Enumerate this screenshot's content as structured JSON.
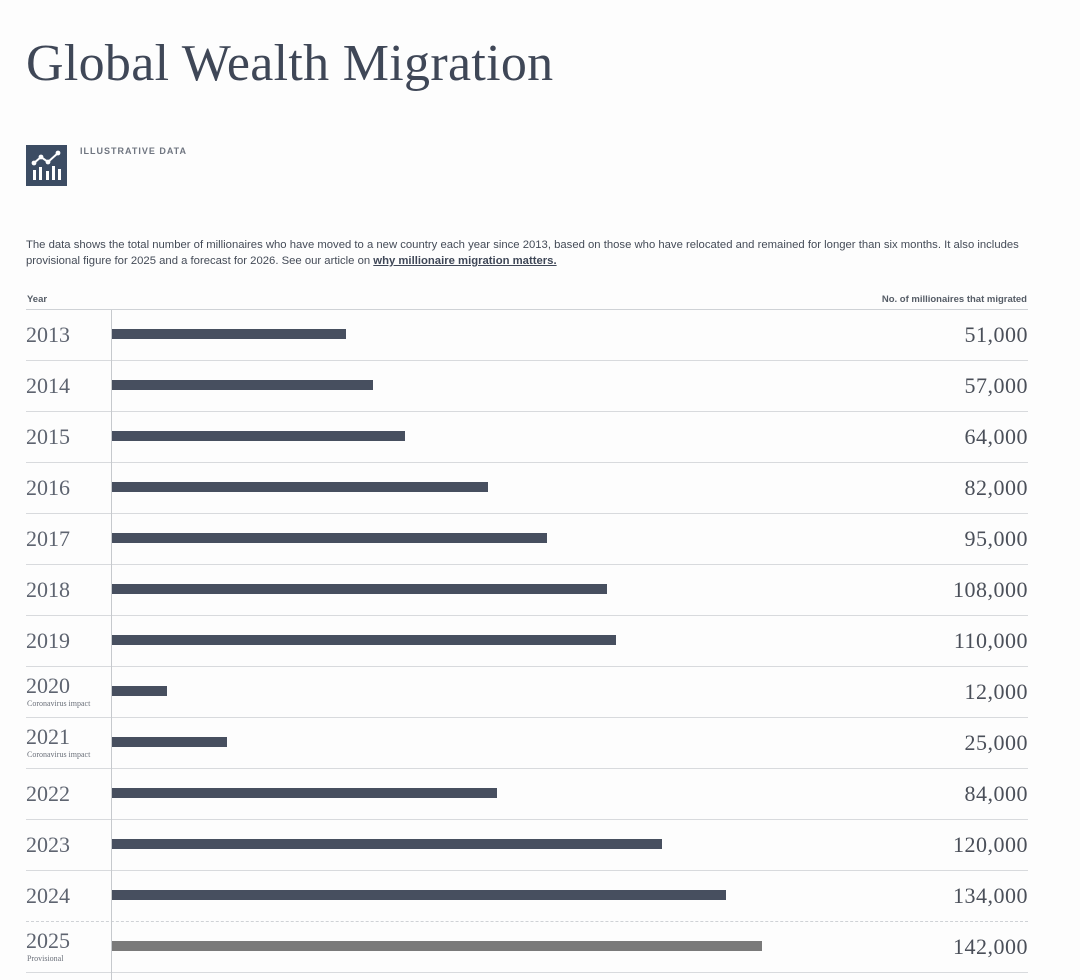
{
  "title": "Global Wealth Migration",
  "badge": {
    "icon": "chart-icon",
    "label": "ILLUSTRATIVE DATA"
  },
  "description": {
    "line1": "The data shows the total number of millionaires who have moved to a new country each year since 2013, based on those who have relocated and remained for longer than six months. It also includes",
    "line2": "provisional figure for 2025 and a forecast for 2026. See our article on ",
    "link": "why millionaire migration matters."
  },
  "columns": {
    "year": "Year",
    "count": "No. of millionaires that migrated"
  },
  "colors": {
    "bar": "#474f5f",
    "bar_provisional": "#7a7a7a",
    "title": "#3f4757"
  },
  "chart_data": {
    "type": "bar",
    "orientation": "horizontal",
    "title": "Global Wealth Migration",
    "xlabel": "No. of millionaires that migrated",
    "ylabel": "Year",
    "categories": [
      "2013",
      "2014",
      "2015",
      "2016",
      "2017",
      "2018",
      "2019",
      "2020",
      "2021",
      "2022",
      "2023",
      "2024",
      "2025"
    ],
    "values": [
      51000,
      57000,
      64000,
      82000,
      95000,
      108000,
      110000,
      12000,
      25000,
      84000,
      120000,
      134000,
      142000
    ],
    "value_labels": [
      "51,000",
      "57,000",
      "64,000",
      "82,000",
      "95,000",
      "108,000",
      "110,000",
      "12,000",
      "25,000",
      "84,000",
      "120,000",
      "134,000",
      "142,000"
    ],
    "notes": [
      "",
      "",
      "",
      "",
      "",
      "",
      "",
      "Coronavirus impact",
      "Coronavirus impact",
      "",
      "",
      "",
      "Provisional"
    ],
    "provisional": [
      false,
      false,
      false,
      false,
      false,
      false,
      false,
      false,
      false,
      false,
      false,
      false,
      true
    ],
    "xlim": [
      0,
      200000
    ],
    "grid": false
  }
}
